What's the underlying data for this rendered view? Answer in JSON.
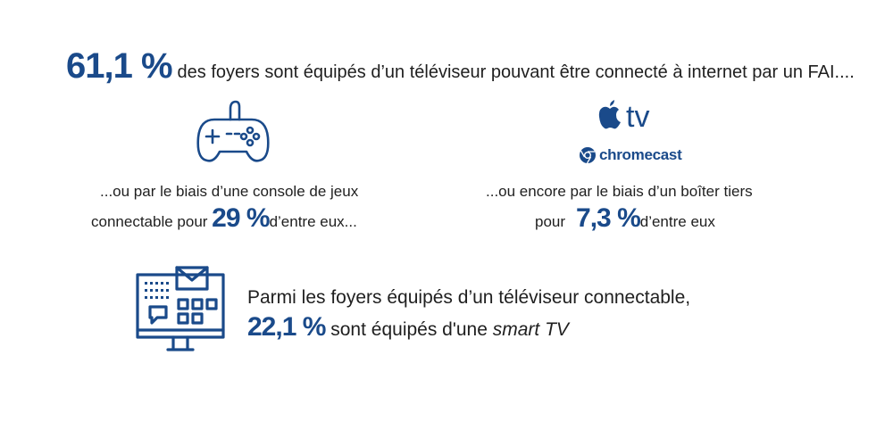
{
  "headline": {
    "stat": "61,1 %",
    "text": "des foyers sont équipés d’un téléviseur pouvant être connecté à internet par un FAI...."
  },
  "console": {
    "line1": "...ou par le biais d’une console de jeux",
    "line2_prefix": "connectable pour",
    "stat": "29 %",
    "line2_suffix": "d’entre eux..."
  },
  "third_party_box": {
    "logo_appletv": "tv",
    "logo_chromecast": "chromecast",
    "line1": "...ou encore par le biais d’un boîter tiers",
    "line2_prefix": "pour",
    "stat": "7,3 %",
    "line2_suffix": "d’entre eux"
  },
  "smart_tv": {
    "line1": "Parmi les foyers équipés d’un téléviseur connectable,",
    "stat": "22,1 %",
    "line2_text": "sont équipés d'une",
    "line2_italic": "smart TV"
  },
  "icons": {
    "gamepad": "gamepad-icon",
    "apple": "apple-icon",
    "chromecast": "chromecast-icon",
    "computer": "computer-mail-icon"
  },
  "colors": {
    "accent": "#1a4a8a",
    "text": "#1f1f1f"
  }
}
